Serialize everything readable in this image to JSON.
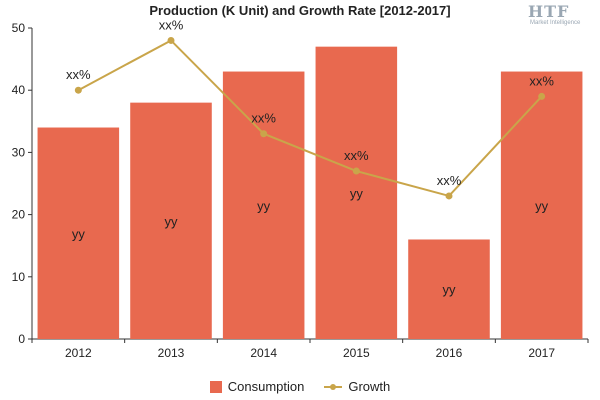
{
  "chart_data": {
    "type": "bar",
    "title": "Production (K Unit) and Growth Rate [2012-2017]",
    "categories": [
      "2012",
      "2013",
      "2014",
      "2015",
      "2016",
      "2017"
    ],
    "series": [
      {
        "name": "Consumption",
        "type": "bar",
        "values": [
          34,
          38,
          43,
          47,
          16,
          43
        ],
        "data_labels": [
          "yy",
          "yy",
          "yy",
          "yy",
          "yy",
          "yy"
        ],
        "color": "#e8694f"
      },
      {
        "name": "Growth",
        "type": "line",
        "values": [
          40,
          48,
          33,
          27,
          23,
          39
        ],
        "data_labels": [
          "xx%",
          "xx%",
          "xx%",
          "xx%",
          "xx%",
          "xx%"
        ],
        "color": "#c9a54a"
      }
    ],
    "ylim": [
      0,
      50
    ],
    "yticks": [
      0,
      10,
      20,
      30,
      40,
      50
    ],
    "xlabel": "",
    "ylabel": "",
    "grid": false,
    "legend_position": "bottom"
  },
  "logo": {
    "text": "HTF",
    "subtext": "Market Intelligence"
  }
}
